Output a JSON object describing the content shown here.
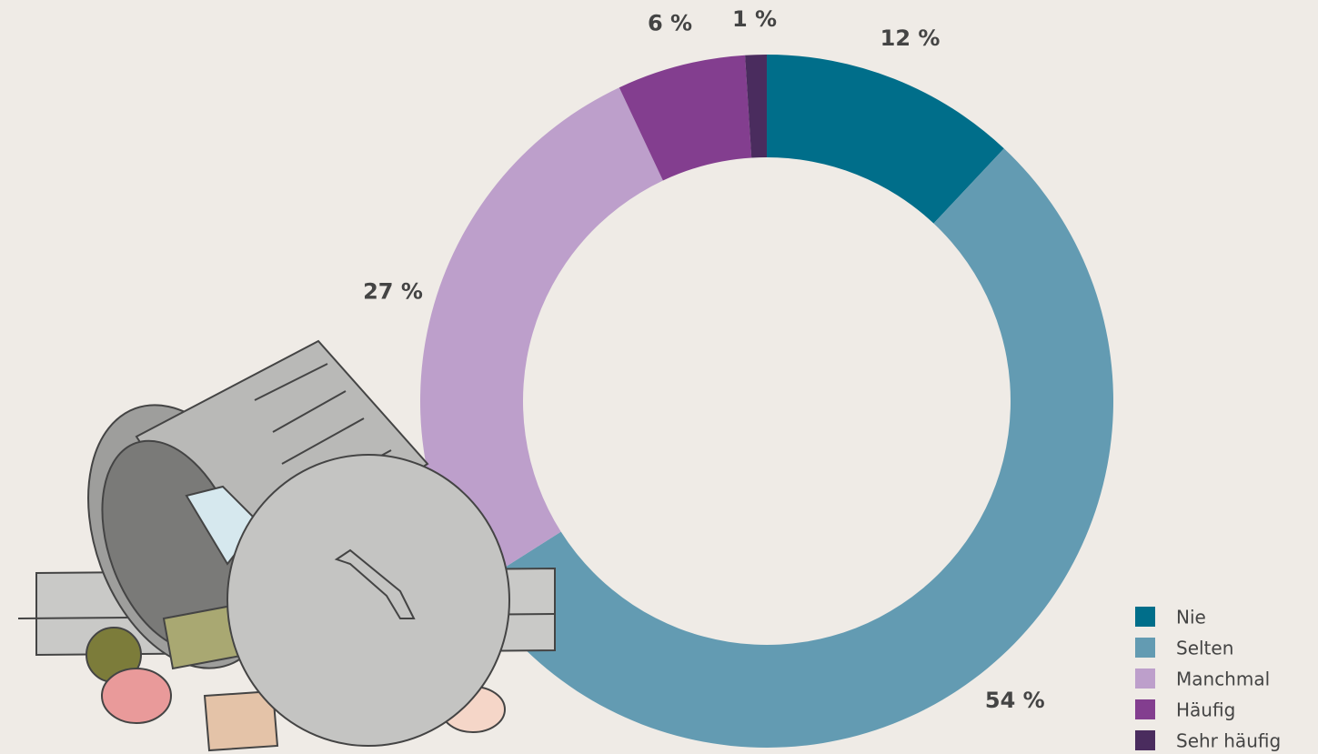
{
  "chart_data": {
    "type": "donut",
    "categories": [
      "Nie",
      "Selten",
      "Manchmal",
      "Häufig",
      "Sehr häufig"
    ],
    "values": [
      12,
      54,
      27,
      6,
      1
    ],
    "value_labels": [
      "12 %",
      "54 %",
      "27 %",
      "6 %",
      "1 %"
    ],
    "colors": [
      "#006e8a",
      "#639bb2",
      "#bd9fcb",
      "#833e8f",
      "#4a2c5e"
    ],
    "legend": "bottom-right"
  }
}
